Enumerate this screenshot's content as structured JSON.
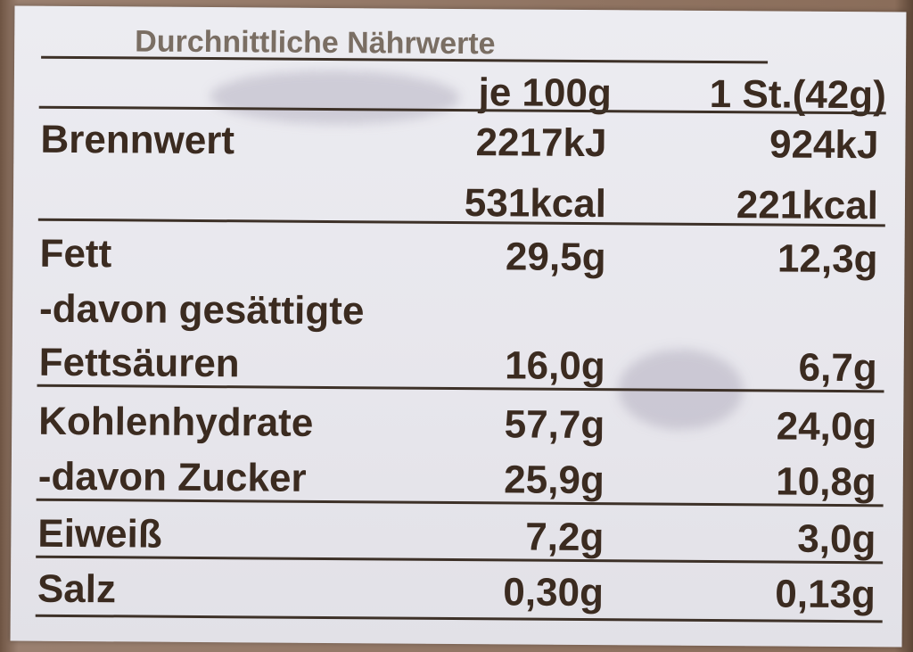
{
  "title": "Durchnittliche Nährwerte",
  "header": {
    "col1": "je 100g",
    "col2": "1 St.(42g)"
  },
  "rows": [
    {
      "label": "Brennwert",
      "v100": "2217kJ",
      "vpiece": "924kJ"
    },
    {
      "label": "",
      "v100": "531kcal",
      "vpiece": "221kcal"
    },
    {
      "label": "Fett",
      "v100": "29,5g",
      "vpiece": "12,3g"
    },
    {
      "label": "-davon gesättigte",
      "v100": "",
      "vpiece": ""
    },
    {
      "label": "Fettsäuren",
      "v100": "16,0g",
      "vpiece": "6,7g"
    },
    {
      "label": "Kohlenhydrate",
      "v100": "57,7g",
      "vpiece": "24,0g"
    },
    {
      "label": "-davon Zucker",
      "v100": "25,9g",
      "vpiece": "10,8g"
    },
    {
      "label": "Eiweiß",
      "v100": "7,2g",
      "vpiece": "3,0g"
    },
    {
      "label": "Salz",
      "v100": "0,30g",
      "vpiece": "0,13g"
    }
  ],
  "colors": {
    "text": "#3b2b20",
    "label_bg": "#e9e8ee",
    "packaging": "#7d6250"
  }
}
